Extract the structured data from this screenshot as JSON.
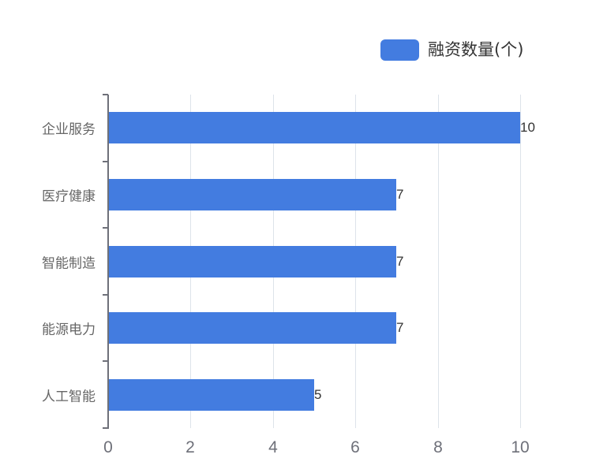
{
  "chart_data": {
    "type": "bar",
    "orientation": "horizontal",
    "title": "",
    "categories": [
      "企业服务",
      "医疗健康",
      "智能制造",
      "能源电力",
      "人工智能"
    ],
    "series": [
      {
        "name": "融资数量(个)",
        "values": [
          10,
          7,
          7,
          7,
          5
        ],
        "color": "#437ce0"
      }
    ],
    "xlabel": "",
    "ylabel": "",
    "xlim": [
      0,
      10
    ],
    "x_ticks": [
      "0",
      "2",
      "4",
      "6",
      "8",
      "10"
    ],
    "grid": {
      "vertical": true,
      "horizontal": false
    },
    "legend_position": "top-right",
    "data_labels": true
  },
  "legend": {
    "label": "融资数量(个)",
    "color": "#437ce0"
  },
  "axis": {
    "x_ticks": [
      "0",
      "2",
      "4",
      "6",
      "8",
      "10"
    ],
    "y_labels": [
      "企业服务",
      "医疗健康",
      "智能制造",
      "能源电力",
      "人工智能"
    ]
  },
  "bars": [
    {
      "category": "企业服务",
      "value": "10"
    },
    {
      "category": "医疗健康",
      "value": "7"
    },
    {
      "category": "智能制造",
      "value": "7"
    },
    {
      "category": "能源电力",
      "value": "7"
    },
    {
      "category": "人工智能",
      "value": "5"
    }
  ]
}
